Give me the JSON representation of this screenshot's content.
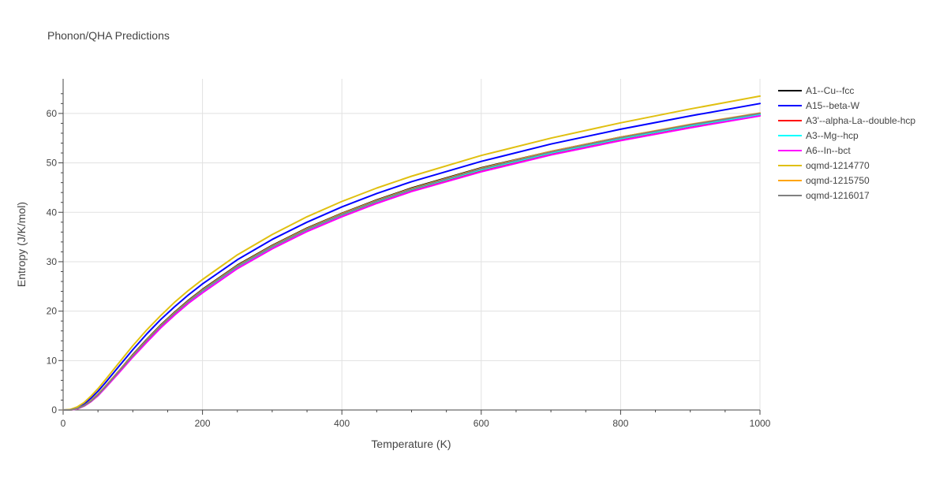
{
  "chart_data": {
    "type": "line",
    "title": "Phonon/QHA Predictions",
    "xlabel": "Temperature (K)",
    "ylabel": "Entropy (J/K/mol)",
    "xlim": [
      0,
      1000
    ],
    "ylim": [
      0,
      67
    ],
    "xticks": [
      0,
      200,
      400,
      600,
      800,
      1000
    ],
    "yticks": [
      0,
      10,
      20,
      30,
      40,
      50,
      60
    ],
    "grid": true,
    "legend_position": "right",
    "x": [
      0,
      10,
      20,
      30,
      40,
      50,
      60,
      80,
      100,
      120,
      140,
      160,
      180,
      200,
      250,
      300,
      350,
      400,
      450,
      500,
      600,
      700,
      800,
      900,
      1000
    ],
    "series": [
      {
        "name": "A1--Cu--fcc",
        "color": "#000000",
        "values": [
          0,
          0,
          0.3,
          0.9,
          1.9,
          3.2,
          4.7,
          7.9,
          11.2,
          14.3,
          17.2,
          19.8,
          22.2,
          24.4,
          29.3,
          33.3,
          36.8,
          39.8,
          42.5,
          44.9,
          49.0,
          52.3,
          55.2,
          57.7,
          60.0
        ]
      },
      {
        "name": "A15--beta-W",
        "color": "#0000ff",
        "values": [
          0,
          0.05,
          0.4,
          1.2,
          2.4,
          3.8,
          5.4,
          8.8,
          12.2,
          15.4,
          18.3,
          20.9,
          23.3,
          25.5,
          30.4,
          34.5,
          38.0,
          41.1,
          43.8,
          46.2,
          50.3,
          53.8,
          56.8,
          59.5,
          62.0
        ]
      },
      {
        "name": "A3'--alpha-La--double-hcp",
        "color": "#ff0000",
        "values": [
          0,
          0,
          0.2,
          0.8,
          1.7,
          3.0,
          4.5,
          7.6,
          10.8,
          13.9,
          16.8,
          19.4,
          21.8,
          24.0,
          28.9,
          32.9,
          36.4,
          39.4,
          42.1,
          44.5,
          48.5,
          51.9,
          54.8,
          57.4,
          59.7
        ]
      },
      {
        "name": "A3--Mg--hcp",
        "color": "#00ffff",
        "values": [
          0,
          0,
          0.2,
          0.8,
          1.8,
          3.1,
          4.6,
          7.7,
          10.9,
          14.0,
          16.9,
          19.5,
          21.9,
          24.1,
          29.0,
          33.0,
          36.5,
          39.5,
          42.2,
          44.6,
          48.6,
          52.0,
          54.9,
          57.5,
          59.8
        ]
      },
      {
        "name": "A6--In--bct",
        "color": "#ff00ff",
        "values": [
          0,
          0,
          0.2,
          0.8,
          1.7,
          2.9,
          4.4,
          7.5,
          10.7,
          13.7,
          16.6,
          19.2,
          21.6,
          23.7,
          28.6,
          32.6,
          36.1,
          39.1,
          41.8,
          44.2,
          48.2,
          51.6,
          54.5,
          57.1,
          59.5
        ]
      },
      {
        "name": "oqmd-1214770",
        "color": "#e0c010",
        "values": [
          0,
          0.1,
          0.6,
          1.5,
          2.8,
          4.3,
          6.0,
          9.5,
          13.0,
          16.2,
          19.1,
          21.8,
          24.2,
          26.4,
          31.4,
          35.5,
          39.1,
          42.2,
          44.9,
          47.3,
          51.5,
          55.0,
          58.1,
          60.9,
          63.5
        ]
      },
      {
        "name": "oqmd-1215750",
        "color": "#ffa500",
        "values": [
          0,
          0,
          0.3,
          0.9,
          1.9,
          3.2,
          4.7,
          7.9,
          11.1,
          14.2,
          17.1,
          19.7,
          22.1,
          24.3,
          29.2,
          33.2,
          36.7,
          39.7,
          42.4,
          44.8,
          48.9,
          52.3,
          55.2,
          57.8,
          60.1
        ]
      },
      {
        "name": "oqmd-1216017",
        "color": "#808080",
        "values": [
          0,
          0,
          0.3,
          0.9,
          1.8,
          3.1,
          4.6,
          7.8,
          11.0,
          14.1,
          17.0,
          19.6,
          22.0,
          24.2,
          29.1,
          33.1,
          36.6,
          39.6,
          42.3,
          44.7,
          48.8,
          52.2,
          55.1,
          57.7,
          60.0
        ]
      }
    ]
  }
}
